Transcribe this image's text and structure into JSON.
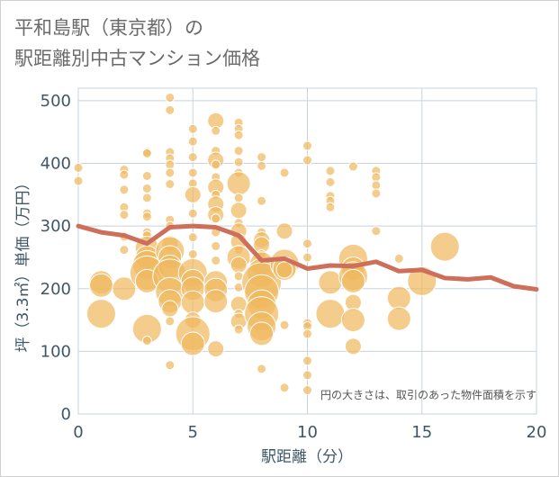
{
  "title_line1": "平和島駅（東京都）の",
  "title_line2": "駅距離別中古マンション価格",
  "colors": {
    "bubble_fill": "#f0b860",
    "bubble_stroke": "#ffffff",
    "line": "#cd6f5a",
    "grid": "#c8d3dd",
    "axis_text": "#3e5666",
    "title_text": "#6b6b6b"
  },
  "chart_data": {
    "type": "scatter",
    "title": "平和島駅（東京都）の駅距離別中古マンション価格",
    "xlabel": "駅距離（分）",
    "ylabel": "坪（3.3㎡）単価（万円）",
    "xlim": [
      0,
      20
    ],
    "ylim": [
      0,
      520
    ],
    "xticks": [
      0,
      5,
      10,
      15,
      20
    ],
    "yticks": [
      0,
      100,
      200,
      300,
      400,
      500
    ],
    "grid": true,
    "annotation": "円の大きさは、取引のあった物件面積を示す",
    "bubbles": [
      {
        "x": 0,
        "y": 393,
        "s": 1
      },
      {
        "x": 0,
        "y": 372,
        "s": 1
      },
      {
        "x": 1,
        "y": 210,
        "s": 3
      },
      {
        "x": 1,
        "y": 205,
        "s": 3
      },
      {
        "x": 1,
        "y": 160,
        "s": 4
      },
      {
        "x": 2,
        "y": 390,
        "s": 1
      },
      {
        "x": 2,
        "y": 382,
        "s": 1
      },
      {
        "x": 2,
        "y": 358,
        "s": 1
      },
      {
        "x": 2,
        "y": 330,
        "s": 1
      },
      {
        "x": 2,
        "y": 318,
        "s": 1
      },
      {
        "x": 2,
        "y": 283,
        "s": 1
      },
      {
        "x": 2,
        "y": 262,
        "s": 1
      },
      {
        "x": 2,
        "y": 200,
        "s": 3
      },
      {
        "x": 3,
        "y": 418,
        "s": 1
      },
      {
        "x": 3,
        "y": 416,
        "s": 1
      },
      {
        "x": 3,
        "y": 380,
        "s": 1
      },
      {
        "x": 3,
        "y": 360,
        "s": 1
      },
      {
        "x": 3,
        "y": 345,
        "s": 1
      },
      {
        "x": 3,
        "y": 320,
        "s": 1
      },
      {
        "x": 3,
        "y": 315,
        "s": 1
      },
      {
        "x": 3,
        "y": 290,
        "s": 1
      },
      {
        "x": 3,
        "y": 285,
        "s": 1
      },
      {
        "x": 3,
        "y": 265,
        "s": 3
      },
      {
        "x": 3,
        "y": 250,
        "s": 3
      },
      {
        "x": 3,
        "y": 238,
        "s": 4
      },
      {
        "x": 3,
        "y": 225,
        "s": 5
      },
      {
        "x": 3,
        "y": 212,
        "s": 3
      },
      {
        "x": 3,
        "y": 136,
        "s": 4
      },
      {
        "x": 3,
        "y": 117,
        "s": 1
      },
      {
        "x": 4,
        "y": 505,
        "s": 1
      },
      {
        "x": 4,
        "y": 485,
        "s": 1
      },
      {
        "x": 4,
        "y": 418,
        "s": 1
      },
      {
        "x": 4,
        "y": 408,
        "s": 1
      },
      {
        "x": 4,
        "y": 398,
        "s": 1
      },
      {
        "x": 4,
        "y": 385,
        "s": 1
      },
      {
        "x": 4,
        "y": 367,
        "s": 1
      },
      {
        "x": 4,
        "y": 310,
        "s": 1
      },
      {
        "x": 4,
        "y": 300,
        "s": 1
      },
      {
        "x": 4,
        "y": 272,
        "s": 2
      },
      {
        "x": 4,
        "y": 260,
        "s": 4
      },
      {
        "x": 4,
        "y": 250,
        "s": 3
      },
      {
        "x": 4,
        "y": 235,
        "s": 3
      },
      {
        "x": 4,
        "y": 220,
        "s": 5
      },
      {
        "x": 4,
        "y": 195,
        "s": 4
      },
      {
        "x": 4,
        "y": 180,
        "s": 3
      },
      {
        "x": 4,
        "y": 168,
        "s": 2
      },
      {
        "x": 4,
        "y": 148,
        "s": 1
      },
      {
        "x": 4,
        "y": 78,
        "s": 1
      },
      {
        "x": 5,
        "y": 455,
        "s": 1
      },
      {
        "x": 5,
        "y": 435,
        "s": 1
      },
      {
        "x": 5,
        "y": 410,
        "s": 1
      },
      {
        "x": 5,
        "y": 385,
        "s": 1
      },
      {
        "x": 5,
        "y": 368,
        "s": 1
      },
      {
        "x": 5,
        "y": 350,
        "s": 2
      },
      {
        "x": 5,
        "y": 320,
        "s": 1
      },
      {
        "x": 5,
        "y": 282,
        "s": 1
      },
      {
        "x": 5,
        "y": 255,
        "s": 1
      },
      {
        "x": 5,
        "y": 225,
        "s": 4
      },
      {
        "x": 5,
        "y": 212,
        "s": 3
      },
      {
        "x": 5,
        "y": 200,
        "s": 3
      },
      {
        "x": 5,
        "y": 178,
        "s": 3
      },
      {
        "x": 5,
        "y": 150,
        "s": 2
      },
      {
        "x": 5,
        "y": 128,
        "s": 5
      },
      {
        "x": 5,
        "y": 112,
        "s": 3
      },
      {
        "x": 6,
        "y": 468,
        "s": 2
      },
      {
        "x": 6,
        "y": 452,
        "s": 1
      },
      {
        "x": 6,
        "y": 420,
        "s": 1
      },
      {
        "x": 6,
        "y": 405,
        "s": 2
      },
      {
        "x": 6,
        "y": 398,
        "s": 1
      },
      {
        "x": 6,
        "y": 378,
        "s": 1
      },
      {
        "x": 6,
        "y": 362,
        "s": 2
      },
      {
        "x": 6,
        "y": 350,
        "s": 1
      },
      {
        "x": 6,
        "y": 335,
        "s": 2
      },
      {
        "x": 6,
        "y": 318,
        "s": 2
      },
      {
        "x": 6,
        "y": 312,
        "s": 1
      },
      {
        "x": 6,
        "y": 290,
        "s": 1
      },
      {
        "x": 6,
        "y": 268,
        "s": 1
      },
      {
        "x": 6,
        "y": 245,
        "s": 1
      },
      {
        "x": 6,
        "y": 210,
        "s": 3
      },
      {
        "x": 6,
        "y": 198,
        "s": 3
      },
      {
        "x": 6,
        "y": 180,
        "s": 3
      },
      {
        "x": 6,
        "y": 104,
        "s": 2
      },
      {
        "x": 7,
        "y": 465,
        "s": 1
      },
      {
        "x": 7,
        "y": 455,
        "s": 1
      },
      {
        "x": 7,
        "y": 445,
        "s": 1
      },
      {
        "x": 7,
        "y": 420,
        "s": 1
      },
      {
        "x": 7,
        "y": 402,
        "s": 1
      },
      {
        "x": 7,
        "y": 385,
        "s": 1
      },
      {
        "x": 7,
        "y": 368,
        "s": 3
      },
      {
        "x": 7,
        "y": 345,
        "s": 1
      },
      {
        "x": 7,
        "y": 325,
        "s": 2
      },
      {
        "x": 7,
        "y": 305,
        "s": 1
      },
      {
        "x": 7,
        "y": 292,
        "s": 2
      },
      {
        "x": 7,
        "y": 275,
        "s": 2
      },
      {
        "x": 7,
        "y": 262,
        "s": 1
      },
      {
        "x": 7,
        "y": 250,
        "s": 3
      },
      {
        "x": 7,
        "y": 238,
        "s": 2
      },
      {
        "x": 7,
        "y": 220,
        "s": 1
      },
      {
        "x": 7,
        "y": 202,
        "s": 1
      },
      {
        "x": 7,
        "y": 175,
        "s": 2
      },
      {
        "x": 7,
        "y": 160,
        "s": 1
      },
      {
        "x": 7,
        "y": 148,
        "s": 2
      },
      {
        "x": 7,
        "y": 135,
        "s": 1
      },
      {
        "x": 8,
        "y": 410,
        "s": 1
      },
      {
        "x": 8,
        "y": 396,
        "s": 1
      },
      {
        "x": 8,
        "y": 340,
        "s": 1
      },
      {
        "x": 8,
        "y": 290,
        "s": 1
      },
      {
        "x": 8,
        "y": 278,
        "s": 2
      },
      {
        "x": 8,
        "y": 270,
        "s": 2
      },
      {
        "x": 8,
        "y": 255,
        "s": 1
      },
      {
        "x": 8,
        "y": 240,
        "s": 3
      },
      {
        "x": 8,
        "y": 225,
        "s": 4
      },
      {
        "x": 8,
        "y": 210,
        "s": 6
      },
      {
        "x": 8,
        "y": 195,
        "s": 5
      },
      {
        "x": 8,
        "y": 175,
        "s": 4
      },
      {
        "x": 8,
        "y": 160,
        "s": 5
      },
      {
        "x": 8,
        "y": 140,
        "s": 4
      },
      {
        "x": 8,
        "y": 128,
        "s": 3
      },
      {
        "x": 8,
        "y": 72,
        "s": 1
      },
      {
        "x": 9,
        "y": 385,
        "s": 1
      },
      {
        "x": 9,
        "y": 292,
        "s": 2
      },
      {
        "x": 9,
        "y": 240,
        "s": 4
      },
      {
        "x": 9,
        "y": 232,
        "s": 3
      },
      {
        "x": 9,
        "y": 230,
        "s": 2
      },
      {
        "x": 9,
        "y": 142,
        "s": 1
      },
      {
        "x": 9,
        "y": 42,
        "s": 1
      },
      {
        "x": 10,
        "y": 428,
        "s": 1
      },
      {
        "x": 10,
        "y": 405,
        "s": 1
      },
      {
        "x": 10,
        "y": 272,
        "s": 1
      },
      {
        "x": 10,
        "y": 250,
        "s": 1
      },
      {
        "x": 10,
        "y": 145,
        "s": 1
      },
      {
        "x": 10,
        "y": 140,
        "s": 1
      },
      {
        "x": 10,
        "y": 128,
        "s": 1
      },
      {
        "x": 10,
        "y": 85,
        "s": 1
      },
      {
        "x": 10,
        "y": 62,
        "s": 1
      },
      {
        "x": 10,
        "y": 38,
        "s": 1
      },
      {
        "x": 11,
        "y": 388,
        "s": 1
      },
      {
        "x": 11,
        "y": 370,
        "s": 1
      },
      {
        "x": 11,
        "y": 348,
        "s": 1
      },
      {
        "x": 11,
        "y": 340,
        "s": 1
      },
      {
        "x": 11,
        "y": 330,
        "s": 1
      },
      {
        "x": 11,
        "y": 210,
        "s": 3
      },
      {
        "x": 11,
        "y": 160,
        "s": 4
      },
      {
        "x": 12,
        "y": 395,
        "s": 1
      },
      {
        "x": 12,
        "y": 248,
        "s": 4
      },
      {
        "x": 12,
        "y": 232,
        "s": 3
      },
      {
        "x": 12,
        "y": 220,
        "s": 4
      },
      {
        "x": 12,
        "y": 212,
        "s": 3
      },
      {
        "x": 12,
        "y": 178,
        "s": 2
      },
      {
        "x": 12,
        "y": 150,
        "s": 3
      },
      {
        "x": 12,
        "y": 108,
        "s": 2
      },
      {
        "x": 13,
        "y": 388,
        "s": 1
      },
      {
        "x": 13,
        "y": 378,
        "s": 1
      },
      {
        "x": 13,
        "y": 365,
        "s": 1
      },
      {
        "x": 13,
        "y": 352,
        "s": 1
      },
      {
        "x": 13,
        "y": 292,
        "s": 1
      },
      {
        "x": 14,
        "y": 248,
        "s": 1
      },
      {
        "x": 14,
        "y": 185,
        "s": 3
      },
      {
        "x": 14,
        "y": 152,
        "s": 3
      },
      {
        "x": 15,
        "y": 212,
        "s": 4
      },
      {
        "x": 16,
        "y": 267,
        "s": 4
      }
    ],
    "series": [
      {
        "type": "line",
        "x": [
          0,
          1,
          2,
          3,
          4,
          5,
          6,
          7,
          8,
          9,
          10,
          11,
          12,
          13,
          14,
          15,
          16,
          17,
          18,
          19,
          20
        ],
        "values": [
          300,
          290,
          285,
          272,
          298,
          300,
          298,
          285,
          245,
          248,
          232,
          237,
          236,
          243,
          228,
          230,
          217,
          215,
          218,
          204,
          199
        ]
      }
    ]
  }
}
